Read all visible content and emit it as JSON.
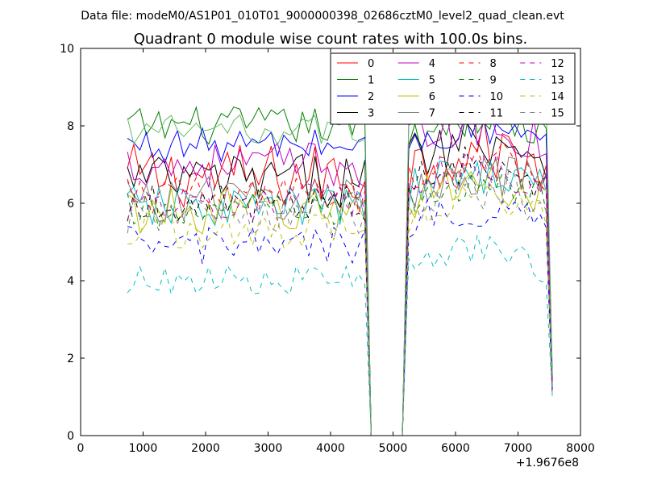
{
  "header": {
    "subtitle": "Data file: modeM0/AS1P01_010T01_9000000398_02686cztM0_level2_quad_clean.evt"
  },
  "chart_data": {
    "type": "line",
    "title": "Quadrant 0 module wise count rates with 100.0s bins.",
    "subtitle": "Data file: modeM0/AS1P01_010T01_9000000398_02686cztM0_level2_quad_clean.evt",
    "xlabel": "",
    "ylabel": "",
    "x_offset_label": "+1.9676e8",
    "xlim": [
      0,
      8000
    ],
    "ylim": [
      0,
      10
    ],
    "x_ticks": [
      0,
      1000,
      2000,
      3000,
      4000,
      5000,
      6000,
      7000,
      8000
    ],
    "y_ticks": [
      0,
      2,
      4,
      6,
      8,
      10
    ],
    "x_tick_labels": [
      "0",
      "1000",
      "2000",
      "3000",
      "4000",
      "5000",
      "6000",
      "7000",
      "8000"
    ],
    "y_tick_labels": [
      "0",
      "2",
      "4",
      "6",
      "8",
      "10"
    ],
    "grid": false,
    "legend_position": "top-right",
    "legend_columns": 4,
    "segments": [
      {
        "x_start": 750,
        "x_end": 4550,
        "step": 100
      },
      {
        "x_start": 5250,
        "x_end": 7450,
        "step": 100
      }
    ],
    "gap": {
      "x_drop_start": 4550,
      "x_zero_start": 4650,
      "x_zero_end": 5150,
      "x_rise_end": 5250
    },
    "tail": {
      "x_start": 7450,
      "x_end": 7550
    },
    "series": [
      {
        "name": "0",
        "color": "#ff0000",
        "dashed": false,
        "base1": 6.7,
        "base2": 6.9,
        "amp": 0.85,
        "tail_value": 1.4,
        "spike": 0
      },
      {
        "name": "1",
        "color": "#008000",
        "dashed": false,
        "base1": 8.0,
        "base2": 7.7,
        "amp": 0.5,
        "tail_value": 1.6,
        "spike": 0
      },
      {
        "name": "2",
        "color": "#0000ff",
        "dashed": false,
        "base1": 7.5,
        "base2": 7.4,
        "amp": 0.45,
        "tail_value": 1.3,
        "spike": 0
      },
      {
        "name": "3",
        "color": "#000000",
        "dashed": false,
        "base1": 6.6,
        "base2": 7.2,
        "amp": 0.7,
        "tail_value": 1.5,
        "spike": 0
      },
      {
        "name": "4",
        "color": "#bf00bf",
        "dashed": false,
        "base1": 7.0,
        "base2": 7.5,
        "amp": 0.6,
        "tail_value": 1.3,
        "spike": 0
      },
      {
        "name": "5",
        "color": "#00bfbf",
        "dashed": false,
        "base1": 5.9,
        "base2": 6.3,
        "amp": 0.55,
        "tail_value": 1.2,
        "spike": 0
      },
      {
        "name": "6",
        "color": "#bfbf00",
        "dashed": false,
        "base1": 5.8,
        "base2": 6.1,
        "amp": 0.6,
        "tail_value": 1.2,
        "spike": 0
      },
      {
        "name": "7",
        "color": "#808080",
        "dashed": false,
        "base1": 6.1,
        "base2": 6.3,
        "amp": 0.6,
        "tail_value": 1.2,
        "spike": 0
      },
      {
        "name": "8",
        "color": "#ff0000",
        "dashed": true,
        "base1": 6.2,
        "base2": 6.7,
        "amp": 0.5,
        "tail_value": 1.3,
        "spike": 0
      },
      {
        "name": "9",
        "color": "#008000",
        "dashed": true,
        "base1": 5.8,
        "base2": 6.0,
        "amp": 0.5,
        "tail_value": 1.1,
        "spike": 0
      },
      {
        "name": "10",
        "color": "#0000ff",
        "dashed": true,
        "base1": 4.9,
        "base2": 5.4,
        "amp": 0.5,
        "tail_value": 1.0,
        "spike": 0
      },
      {
        "name": "11",
        "color": "#000000",
        "dashed": true,
        "base1": 6.0,
        "base2": 6.5,
        "amp": 0.5,
        "tail_value": 1.2,
        "spike": 0
      },
      {
        "name": "12",
        "color": "#bf00bf",
        "dashed": true,
        "base1": 6.0,
        "base2": 6.4,
        "amp": 0.5,
        "tail_value": 1.2,
        "spike": 0
      },
      {
        "name": "13",
        "color": "#00bfbf",
        "dashed": true,
        "base1": 4.0,
        "base2": 4.3,
        "amp": 0.4,
        "tail_value": 1.0,
        "spike": 0
      },
      {
        "name": "14",
        "color": "#bfbf00",
        "dashed": true,
        "base1": 5.3,
        "base2": 5.7,
        "amp": 0.5,
        "tail_value": 1.1,
        "spike": 0
      },
      {
        "name": "15",
        "color": "#808080",
        "dashed": true,
        "base1": 5.6,
        "base2": 5.9,
        "amp": 0.6,
        "tail_value": 1.2,
        "spike": 0
      }
    ],
    "highlight_series": {
      "name": "unlabeled-light-green",
      "color": "#66bb66",
      "note_visible": false
    }
  }
}
